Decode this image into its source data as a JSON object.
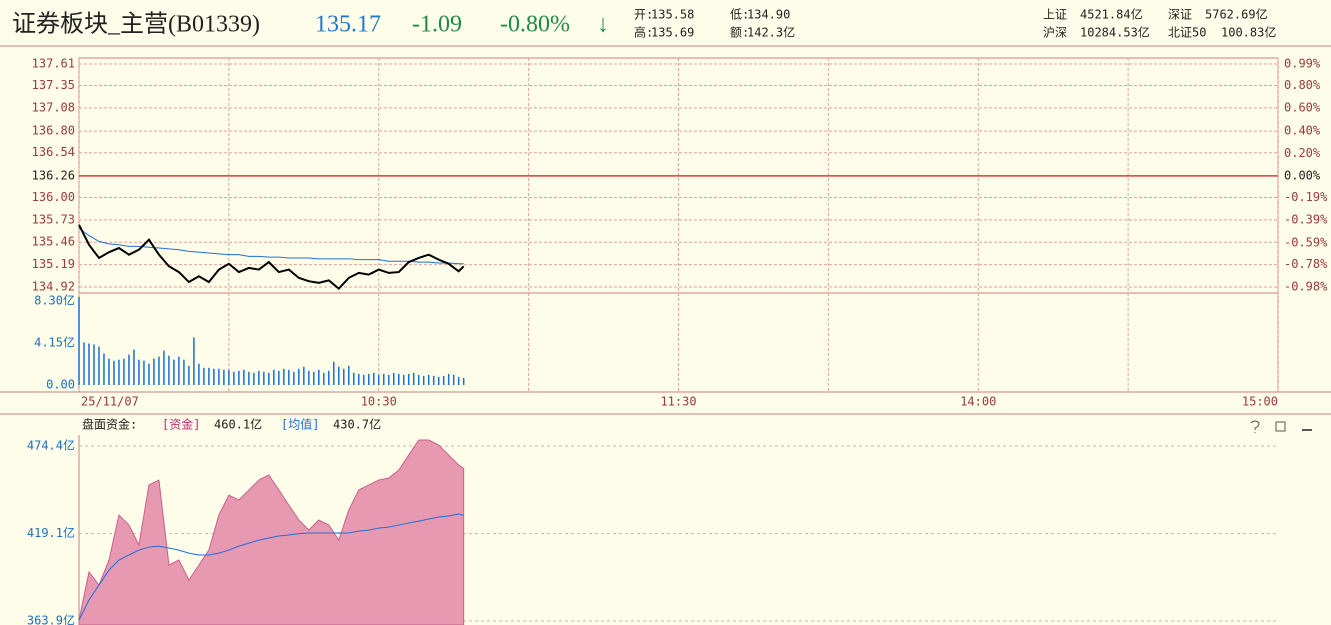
{
  "header": {
    "title": "证券板块_主营(B01339)",
    "price": "135.17",
    "change": "-1.09",
    "pct": "-0.80%",
    "arrow": "↓",
    "stats": [
      {
        "label": "开:",
        "value": "135.58"
      },
      {
        "label": "低:",
        "value": "134.90"
      },
      {
        "label": "高:",
        "value": "135.69"
      },
      {
        "label": "额:",
        "value": "142.3亿"
      }
    ],
    "indices": [
      {
        "name": "上证",
        "value": "4521.84亿"
      },
      {
        "name": "深证",
        "value": "5762.69亿"
      },
      {
        "name": "沪深",
        "value": "10284.53亿"
      },
      {
        "name": "北证50",
        "value": "100.83亿"
      }
    ]
  },
  "chart_data": [
    {
      "type": "line",
      "reference": 136.26,
      "x": [
        0,
        2,
        4,
        6,
        8,
        10,
        12,
        14,
        16,
        18,
        20,
        22,
        24,
        26,
        28,
        30,
        32,
        34,
        36,
        38,
        40,
        42,
        44,
        46,
        48,
        50,
        52,
        54,
        56,
        58,
        60,
        62,
        64,
        66,
        68,
        70,
        72,
        74,
        76,
        77
      ],
      "xlim": [
        0,
        240
      ],
      "ylim": [
        134.92,
        137.61
      ],
      "yticks": [
        137.61,
        137.35,
        137.08,
        {
          "value": 136.8,
          "label": "136.80"
        },
        136.54,
        136.26,
        {
          "value": 136,
          "label": "136.00"
        },
        135.73,
        135.46,
        135.19,
        134.92
      ],
      "y2lim": [
        -0.98,
        0.99
      ],
      "y2ticks": [
        {
          "value": 0.99,
          "label": "0.99%"
        },
        {
          "value": 0.8,
          "label": "0.80%"
        },
        {
          "value": 0.6,
          "label": "0.60%"
        },
        {
          "value": 0.4,
          "label": "0.40%"
        },
        {
          "value": 0.2,
          "label": "0.20%"
        },
        {
          "value": 0,
          "label": "0.00%"
        },
        {
          "value": -0.19,
          "label": "-0.19%"
        },
        {
          "value": -0.39,
          "label": "-0.39%"
        },
        {
          "value": -0.59,
          "label": "-0.59%"
        },
        {
          "value": -0.78,
          "label": "-0.78%"
        },
        {
          "value": -0.98,
          "label": "-0.98%"
        }
      ],
      "grid": true,
      "series": [
        {
          "color": "#000000",
          "values": [
            135.67,
            135.43,
            135.27,
            135.34,
            135.39,
            135.31,
            135.37,
            135.49,
            135.31,
            135.17,
            135.1,
            134.98,
            135.05,
            134.98,
            135.13,
            135.2,
            135.1,
            135.15,
            135.13,
            135.22,
            135.1,
            135.13,
            135.03,
            134.99,
            134.97,
            135.0,
            134.9,
            135.03,
            135.09,
            135.07,
            135.13,
            135.09,
            135.1,
            135.22,
            135.27,
            135.31,
            135.25,
            135.2,
            135.11,
            135.17
          ]
        },
        {
          "color": "#1f6fd6",
          "values": [
            135.63,
            135.54,
            135.47,
            135.44,
            135.43,
            135.41,
            135.41,
            135.4,
            135.39,
            135.38,
            135.37,
            135.35,
            135.34,
            135.33,
            135.32,
            135.31,
            135.31,
            135.29,
            135.29,
            135.28,
            135.28,
            135.27,
            135.27,
            135.27,
            135.26,
            135.26,
            135.26,
            135.26,
            135.25,
            135.25,
            135.25,
            135.23,
            135.23,
            135.23,
            135.22,
            135.22,
            135.21,
            135.21,
            135.2,
            135.2
          ]
        }
      ]
    },
    {
      "type": "bar",
      "color": "#1a6fd0",
      "x": [
        0,
        1,
        2,
        3,
        4,
        5,
        6,
        7,
        8,
        9,
        10,
        11,
        12,
        13,
        14,
        15,
        16,
        17,
        18,
        19,
        20,
        21,
        22,
        23,
        24,
        25,
        26,
        27,
        28,
        29,
        30,
        31,
        32,
        33,
        34,
        35,
        36,
        37,
        38,
        39,
        40,
        41,
        42,
        43,
        44,
        45,
        46,
        47,
        48,
        49,
        50,
        51,
        52,
        53,
        54,
        55,
        56,
        57,
        58,
        59,
        60,
        61,
        62,
        63,
        64,
        65,
        66,
        67,
        68,
        69,
        70,
        71,
        72,
        73,
        74,
        75,
        76,
        77
      ],
      "values": [
        8.7,
        4.2,
        4.1,
        4.0,
        3.8,
        3.1,
        2.6,
        2.4,
        2.5,
        2.6,
        3.0,
        3.5,
        2.5,
        2.4,
        2.1,
        2.6,
        2.8,
        3.4,
        2.9,
        2.5,
        2.8,
        2.5,
        1.9,
        4.7,
        2.1,
        1.7,
        1.7,
        1.6,
        1.6,
        1.5,
        1.5,
        1.3,
        1.4,
        1.5,
        1.3,
        1.2,
        1.4,
        1.3,
        1.2,
        1.5,
        1.4,
        1.6,
        1.5,
        1.3,
        1.6,
        1.8,
        1.4,
        1.3,
        1.5,
        1.2,
        1.4,
        2.3,
        1.8,
        1.6,
        1.9,
        1.2,
        1.1,
        1.0,
        1.1,
        1.2,
        1.0,
        1.1,
        1.0,
        1.2,
        1.1,
        1.0,
        1.1,
        1.2,
        1.0,
        0.9,
        1.0,
        0.9,
        0.8,
        0.9,
        1.1,
        1.0,
        0.8,
        0.7
      ],
      "xlim": [
        0,
        240
      ],
      "xticks": [
        {
          "value": 0,
          "label": "25/11/07"
        },
        {
          "value": 60,
          "label": "10:30"
        },
        {
          "value": 120,
          "label": "11:30"
        },
        {
          "value": 180,
          "label": "14:00"
        },
        {
          "value": 240,
          "label": "15:00"
        }
      ],
      "ylim": [
        0,
        8.3
      ],
      "yticks": [
        {
          "value": 8.3,
          "label": "8.30亿"
        },
        {
          "value": 4.15,
          "label": "4.15亿"
        },
        {
          "value": 0,
          "label": "0.00"
        }
      ]
    },
    {
      "type": "area",
      "title": "盘面资金:",
      "x": [
        0,
        2,
        4,
        6,
        8,
        10,
        12,
        14,
        16,
        18,
        20,
        22,
        24,
        26,
        28,
        30,
        32,
        34,
        36,
        38,
        40,
        42,
        44,
        46,
        48,
        50,
        52,
        54,
        56,
        58,
        60,
        62,
        64,
        66,
        68,
        70,
        72,
        74,
        76,
        77
      ],
      "xlim": [
        0,
        240
      ],
      "ylim": [
        361.4,
        480.1
      ],
      "yticks": [
        {
          "value": 474.4,
          "label": "474.4亿"
        },
        {
          "value": 419.1,
          "label": "419.1亿"
        },
        {
          "value": 363.9,
          "label": "363.9亿"
        }
      ],
      "series": [
        {
          "name": "[资金]",
          "current": "460.1亿",
          "color": "#e899b2",
          "values": [
            364.5,
            394.8,
            386.6,
            402.4,
            430.8,
            424.5,
            411.9,
            449.8,
            452.9,
            399.3,
            402.4,
            389.8,
            399.3,
            408.7,
            430.8,
            443.4,
            440.3,
            446.6,
            452.9,
            456.1,
            446.6,
            437.1,
            427.7,
            421.3,
            427.7,
            424.5,
            415,
            434,
            446.6,
            449.8,
            452.9,
            454.2,
            459.2,
            468.7,
            478.2,
            478.2,
            475,
            468.7,
            462.4,
            460.1
          ]
        },
        {
          "name": "[均值]",
          "current": "430.7亿",
          "color": "#1f6fd6",
          "values": [
            364.5,
            377.2,
            386.6,
            396.1,
            402.4,
            405.6,
            408.7,
            410.6,
            411.2,
            410,
            408.7,
            406.8,
            405.6,
            405.6,
            406.8,
            408.7,
            411.2,
            413.1,
            415,
            416.3,
            417.6,
            418.2,
            419.1,
            419.5,
            419.5,
            419.5,
            419.5,
            419.5,
            420.7,
            421.3,
            422.6,
            423.2,
            424.5,
            425.8,
            427,
            428.3,
            429.6,
            430.2,
            431.5,
            430.7
          ]
        }
      ]
    }
  ]
}
